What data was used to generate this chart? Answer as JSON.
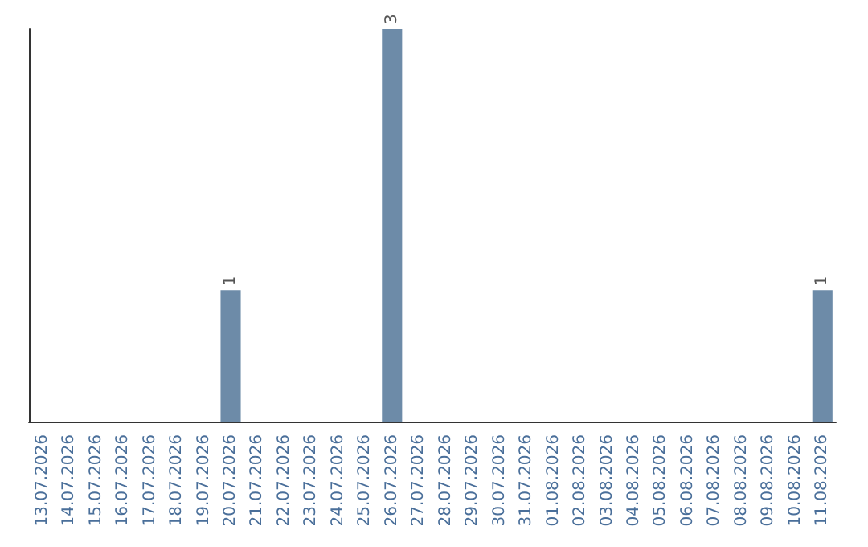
{
  "chart_data": {
    "type": "bar",
    "categories": [
      "13.07.2026",
      "14.07.2026",
      "15.07.2026",
      "16.07.2026",
      "17.07.2026",
      "18.07.2026",
      "19.07.2026",
      "20.07.2026",
      "21.07.2026",
      "22.07.2026",
      "23.07.2026",
      "24.07.2026",
      "25.07.2026",
      "26.07.2026",
      "27.07.2026",
      "28.07.2026",
      "29.07.2026",
      "30.07.2026",
      "31.07.2026",
      "01.08.2026",
      "02.08.2026",
      "03.08.2026",
      "04.08.2026",
      "05.08.2026",
      "06.08.2026",
      "07.08.2026",
      "08.08.2026",
      "09.08.2026",
      "10.08.2026",
      "11.08.2026"
    ],
    "values": [
      0,
      0,
      0,
      0,
      0,
      0,
      0,
      1,
      0,
      0,
      0,
      0,
      0,
      3,
      0,
      0,
      0,
      0,
      0,
      0,
      0,
      0,
      0,
      0,
      0,
      0,
      0,
      0,
      0,
      1
    ],
    "value_labels": [
      null,
      null,
      null,
      null,
      null,
      null,
      null,
      "1",
      null,
      null,
      null,
      null,
      null,
      "3",
      null,
      null,
      null,
      null,
      null,
      null,
      null,
      null,
      null,
      null,
      null,
      null,
      null,
      null,
      null,
      "1"
    ],
    "color": "#6d8ba8",
    "ylim": [
      0,
      3
    ],
    "tick_labels": "x"
  }
}
